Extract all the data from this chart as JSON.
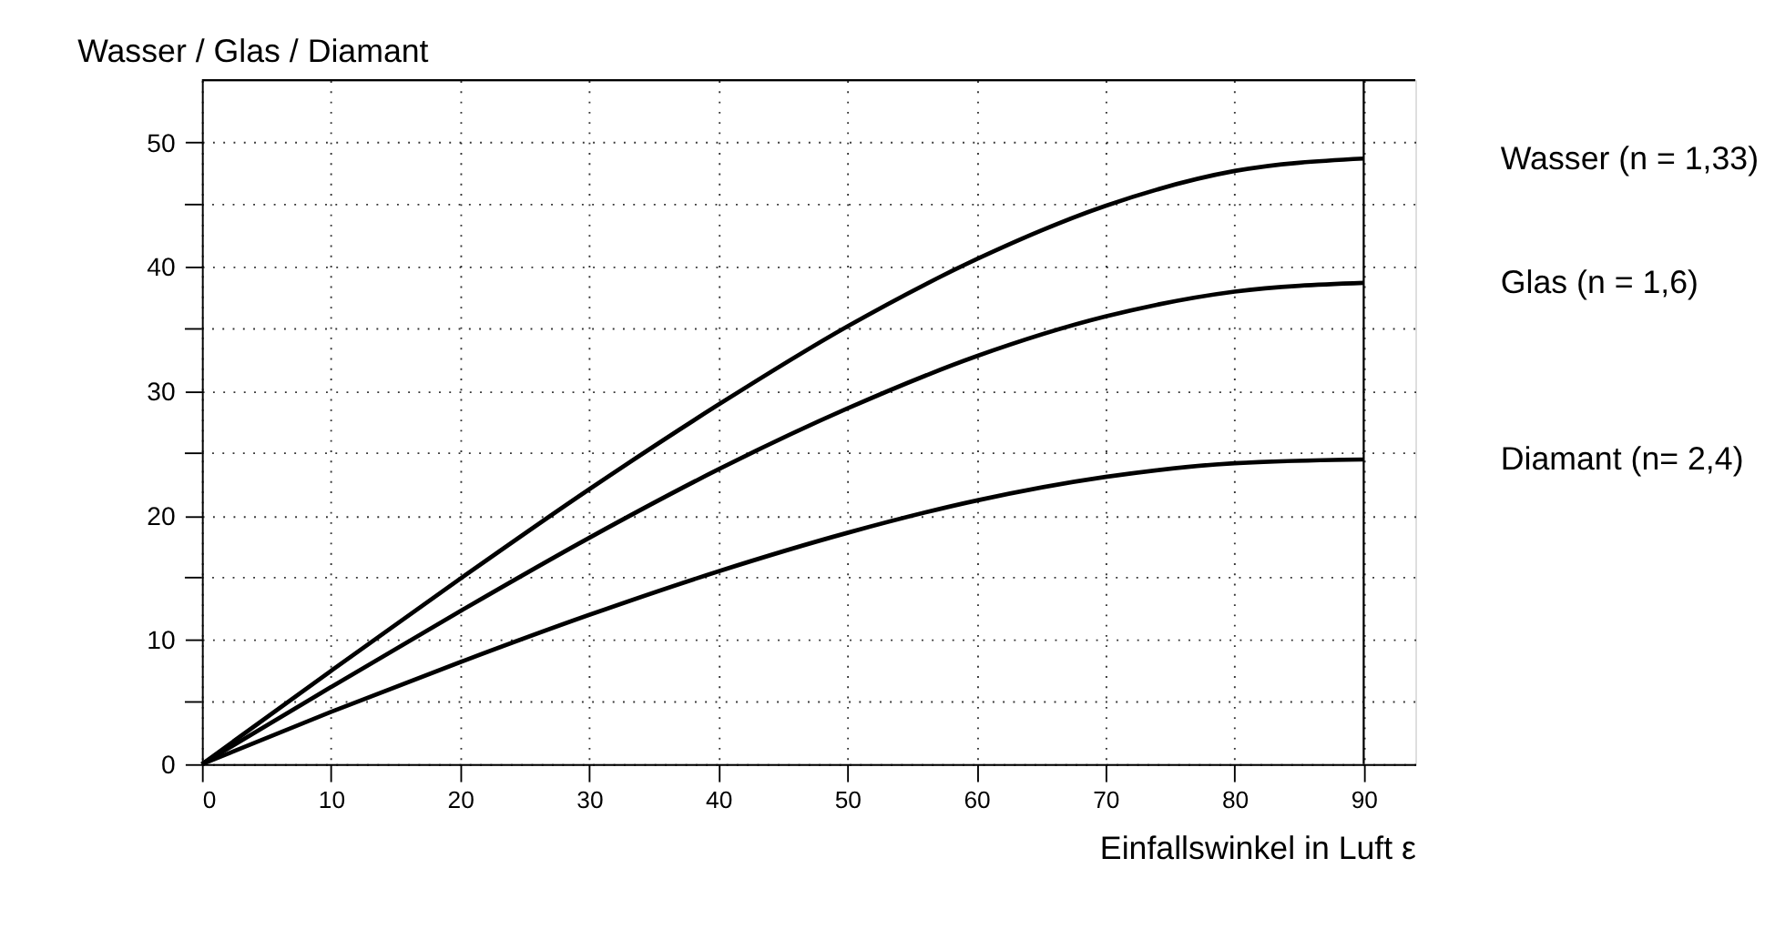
{
  "chart_data": {
    "type": "line",
    "title": "Wasser / Glas / Diamant",
    "xlabel": "Einfallswinkel in Luft ε",
    "x": [
      0,
      10,
      20,
      30,
      40,
      50,
      60,
      70,
      80,
      90
    ],
    "series": [
      {
        "name": "Wasser  (n = 1,33)",
        "color": "#000000",
        "values": [
          0,
          7.5,
          14.9,
          22.1,
          28.9,
          35.2,
          40.6,
          44.9,
          47.7,
          48.7
        ]
      },
      {
        "name": "Glas  (n = 1,6)",
        "color": "#000000",
        "values": [
          0,
          6.2,
          12.3,
          18.2,
          23.7,
          28.6,
          32.8,
          36.0,
          38.0,
          38.7
        ]
      },
      {
        "name": "Diamant  (n= 2,4)",
        "color": "#000000",
        "values": [
          0,
          4.2,
          8.2,
          12.0,
          15.5,
          18.6,
          21.2,
          23.1,
          24.2,
          24.5
        ]
      }
    ],
    "xlim": [
      0,
      94
    ],
    "ylim": [
      0,
      55
    ],
    "xticks": [
      0,
      10,
      20,
      30,
      40,
      50,
      60,
      70,
      80,
      90
    ],
    "yticks": [
      0,
      {
        "value": 5,
        "label": null
      },
      10,
      {
        "value": 15,
        "label": null
      },
      20,
      {
        "value": 25,
        "label": null
      },
      30,
      {
        "value": 35,
        "label": null
      },
      40,
      {
        "value": 45,
        "label": null
      },
      50
    ],
    "grid": true,
    "legend": false,
    "marker": "none",
    "line_style": "solid",
    "ref_lines": [
      {
        "axis": "x",
        "value": 90,
        "label": null,
        "color": "#000000",
        "line_style": "solid"
      },
      {
        "axis": "y",
        "value": 55,
        "label": null,
        "color": "#000000",
        "line_style": "solid"
      }
    ]
  }
}
